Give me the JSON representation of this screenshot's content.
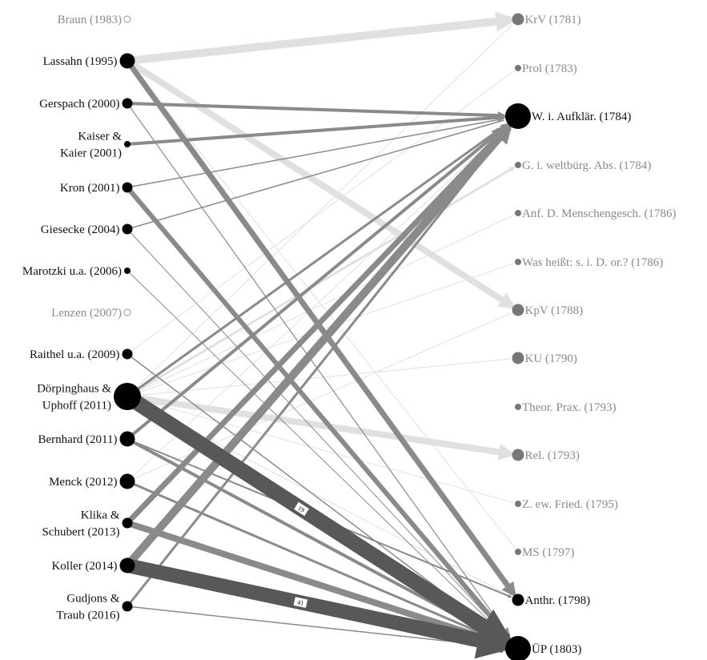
{
  "colors": {
    "label_active": "#111111",
    "label_muted": "#8a8a8a",
    "node_active": "#000000",
    "node_muted": "#777777",
    "node_hollow": "#aaaaaa",
    "edge_light": "#e0e0e0",
    "edge_mid": "#8a8a8a",
    "edge_dark": "#585858",
    "badge_fill": "#ffffff"
  },
  "sources": [
    {
      "id": "braun",
      "lines": [
        "Braun (1983)"
      ],
      "size": "hollow",
      "muted": true
    },
    {
      "id": "lassahn",
      "lines": [
        "Lassahn (1995)"
      ],
      "size": "large"
    },
    {
      "id": "gerspach",
      "lines": [
        "Gerspach (2000)"
      ],
      "size": "medium"
    },
    {
      "id": "kaiser",
      "lines": [
        "Kaiser &",
        "Kaier (2001)"
      ],
      "size": "small"
    },
    {
      "id": "kron",
      "lines": [
        "Kron (2001)"
      ],
      "size": "medium"
    },
    {
      "id": "giesecke",
      "lines": [
        "Giesecke (2004)"
      ],
      "size": "medium"
    },
    {
      "id": "marotzki",
      "lines": [
        "Marotzki u.a. (2006)"
      ],
      "size": "small"
    },
    {
      "id": "lenzen",
      "lines": [
        "Lenzen (2007)"
      ],
      "size": "hollow",
      "muted": true
    },
    {
      "id": "raithel",
      "lines": [
        "Raithel u.a. (2009)"
      ],
      "size": "medium"
    },
    {
      "id": "doerpinghaus",
      "lines": [
        "Dörpinghaus &",
        "Uphoff (2011)"
      ],
      "size": "xlarge"
    },
    {
      "id": "bernhard",
      "lines": [
        "Bernhard (2011)"
      ],
      "size": "large"
    },
    {
      "id": "menck",
      "lines": [
        "Menck (2012)"
      ],
      "size": "large"
    },
    {
      "id": "klika",
      "lines": [
        "Klika &",
        "Schubert (2013)"
      ],
      "size": "medium"
    },
    {
      "id": "koller",
      "lines": [
        "Koller (2014)"
      ],
      "size": "large"
    },
    {
      "id": "gudjons",
      "lines": [
        "Gudjons &",
        "Traub (2016)"
      ],
      "size": "medium"
    }
  ],
  "targets": [
    {
      "id": "krv",
      "label": "KrV (1781)",
      "size": "medium",
      "muted": true
    },
    {
      "id": "prol",
      "label": "Prol (1783)",
      "size": "small",
      "muted": true
    },
    {
      "id": "waufk",
      "label": "W. i. Aufklär. (1784)",
      "size": "huge"
    },
    {
      "id": "gweltb",
      "label": "G. i. weltbürg. Abs. (1784)",
      "size": "small",
      "muted": true
    },
    {
      "id": "anfmensch",
      "label": "Anf. D. Menschengesch. (1786)",
      "size": "small",
      "muted": true
    },
    {
      "id": "washeisst",
      "label": "Was heißt: s. i. D. or.? (1786)",
      "size": "small",
      "muted": true
    },
    {
      "id": "kpv",
      "label": "KpV (1788)",
      "size": "medium",
      "muted": true
    },
    {
      "id": "ku",
      "label": "KU (1790)",
      "size": "medium",
      "muted": true
    },
    {
      "id": "theorprax",
      "label": "Theor. Prax. (1793)",
      "size": "small",
      "muted": true
    },
    {
      "id": "rel",
      "label": "Rel. (1793)",
      "size": "medium",
      "muted": true
    },
    {
      "id": "zewfried",
      "label": "Z. ew. Fried. (1795)",
      "size": "small",
      "muted": true
    },
    {
      "id": "ms",
      "label": "MS (1797)",
      "size": "small",
      "muted": true
    },
    {
      "id": "anthr",
      "label": "Anthr. (1798)",
      "size": "medium"
    },
    {
      "id": "up",
      "label": "ÜP (1803)",
      "size": "huge"
    }
  ],
  "edges": [
    {
      "from": "lassahn",
      "to": "krv",
      "w": 10,
      "tone": "light"
    },
    {
      "from": "lassahn",
      "to": "kpv",
      "w": 8,
      "tone": "light"
    },
    {
      "from": "lassahn",
      "to": "anthr",
      "w": 7,
      "tone": "mid"
    },
    {
      "from": "lassahn",
      "to": "ms",
      "w": 1,
      "tone": "light"
    },
    {
      "from": "gerspach",
      "to": "waufk",
      "w": 4,
      "tone": "mid"
    },
    {
      "from": "gerspach",
      "to": "up",
      "w": 1.2,
      "tone": "mid"
    },
    {
      "from": "kaiser",
      "to": "waufk",
      "w": 4,
      "tone": "mid"
    },
    {
      "from": "kron",
      "to": "up",
      "w": 6,
      "tone": "mid"
    },
    {
      "from": "kron",
      "to": "waufk",
      "w": 1.5,
      "tone": "mid"
    },
    {
      "from": "giesecke",
      "to": "waufk",
      "w": 1.5,
      "tone": "mid"
    },
    {
      "from": "giesecke",
      "to": "up",
      "w": 1,
      "tone": "mid"
    },
    {
      "from": "marotzki",
      "to": "up",
      "w": 1,
      "tone": "mid"
    },
    {
      "from": "raithel",
      "to": "up",
      "w": 1.5,
      "tone": "mid"
    },
    {
      "from": "raithel",
      "to": "prol",
      "w": 1,
      "tone": "light"
    },
    {
      "from": "doerpinghaus",
      "to": "up",
      "w": 19,
      "tone": "dark",
      "label": "19"
    },
    {
      "from": "doerpinghaus",
      "to": "rel",
      "w": 8,
      "tone": "light"
    },
    {
      "from": "doerpinghaus",
      "to": "waufk",
      "w": 3,
      "tone": "mid"
    },
    {
      "from": "doerpinghaus",
      "to": "gweltb",
      "w": 3,
      "tone": "light"
    },
    {
      "from": "doerpinghaus",
      "to": "krv",
      "w": 1,
      "tone": "light"
    },
    {
      "from": "doerpinghaus",
      "to": "anfmensch",
      "w": 1,
      "tone": "light"
    },
    {
      "from": "doerpinghaus",
      "to": "washeisst",
      "w": 1,
      "tone": "light"
    },
    {
      "from": "doerpinghaus",
      "to": "ku",
      "w": 1,
      "tone": "light"
    },
    {
      "from": "doerpinghaus",
      "to": "zewfried",
      "w": 1,
      "tone": "light"
    },
    {
      "from": "doerpinghaus",
      "to": "anthr",
      "w": 1,
      "tone": "light"
    },
    {
      "from": "bernhard",
      "to": "waufk",
      "w": 4,
      "tone": "mid"
    },
    {
      "from": "bernhard",
      "to": "up",
      "w": 4,
      "tone": "mid"
    },
    {
      "from": "bernhard",
      "to": "anthr",
      "w": 2,
      "tone": "mid"
    },
    {
      "from": "menck",
      "to": "up",
      "w": 3,
      "tone": "mid"
    },
    {
      "from": "menck",
      "to": "waufk",
      "w": 1,
      "tone": "light"
    },
    {
      "from": "menck",
      "to": "kpv",
      "w": 1,
      "tone": "light"
    },
    {
      "from": "klika",
      "to": "up",
      "w": 8,
      "tone": "mid"
    },
    {
      "from": "klika",
      "to": "waufk",
      "w": 7,
      "tone": "mid"
    },
    {
      "from": "koller",
      "to": "up",
      "w": 18,
      "tone": "dark",
      "label": "41"
    },
    {
      "from": "koller",
      "to": "waufk",
      "w": 10,
      "tone": "mid"
    },
    {
      "from": "gudjons",
      "to": "waufk",
      "w": 3,
      "tone": "mid"
    },
    {
      "from": "gudjons",
      "to": "up",
      "w": 1.5,
      "tone": "mid"
    }
  ]
}
